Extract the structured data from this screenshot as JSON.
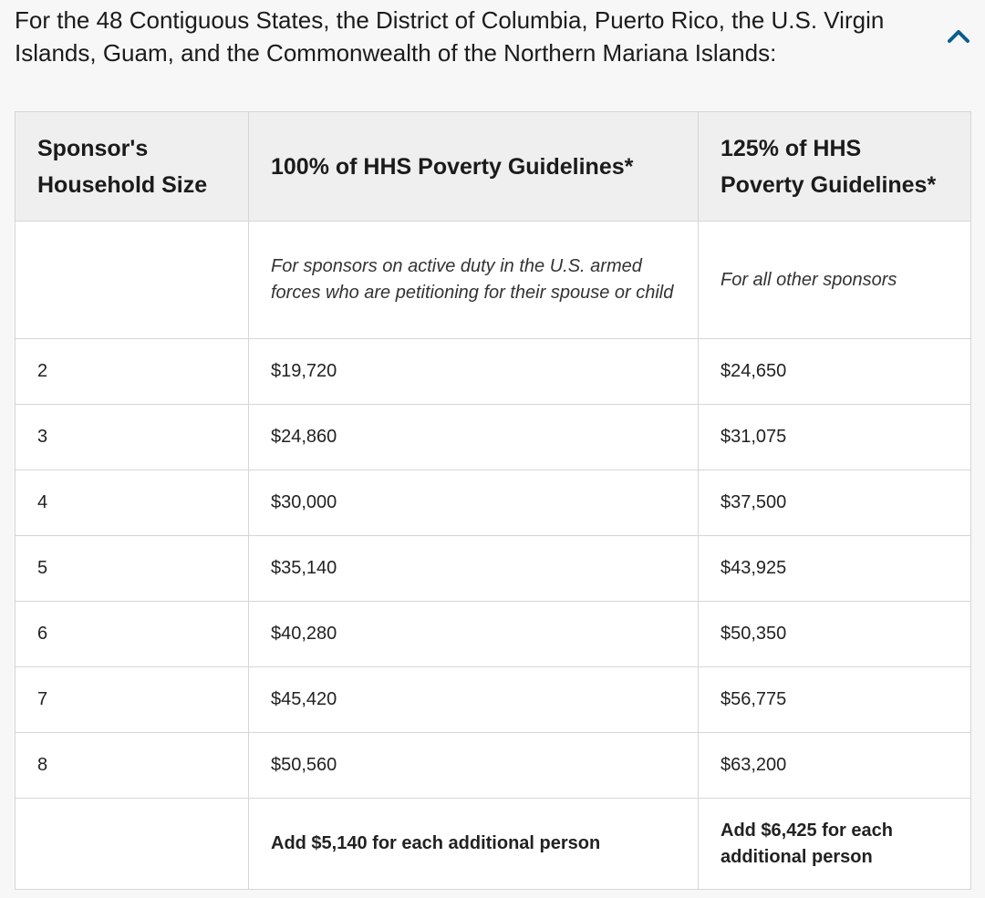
{
  "accordion": {
    "header": "For the 48 Contiguous States, the District of Columbia, Puerto Rico, the U.S. Virgin Islands, Guam, and the Commonwealth of the Northern Mariana Islands:",
    "toggle_icon": "chevron-up-icon",
    "accent_color": "#0b5e8e"
  },
  "table": {
    "headers": [
      "Sponsor's Household Size",
      "100% of HHS Poverty Guidelines*",
      "125% of HHS Poverty Guidelines*"
    ],
    "description_row": {
      "col1": "",
      "col2": "For sponsors on active duty in the U.S. armed forces who are petitioning for their spouse or child",
      "col3": "For all other sponsors"
    },
    "rows": [
      {
        "size": "2",
        "pct100": "$19,720",
        "pct125": "$24,650"
      },
      {
        "size": "3",
        "pct100": "$24,860",
        "pct125": "$31,075"
      },
      {
        "size": "4",
        "pct100": "$30,000",
        "pct125": "$37,500"
      },
      {
        "size": "5",
        "pct100": "$35,140",
        "pct125": "$43,925"
      },
      {
        "size": "6",
        "pct100": "$40,280",
        "pct125": "$50,350"
      },
      {
        "size": "7",
        "pct100": "$45,420",
        "pct125": "$56,775"
      },
      {
        "size": "8",
        "pct100": "$50,560",
        "pct125": "$63,200"
      }
    ],
    "footer_row": {
      "col1": "",
      "col2": "Add $5,140 for each additional person",
      "col3": "Add $6,425 for each additional person"
    }
  }
}
